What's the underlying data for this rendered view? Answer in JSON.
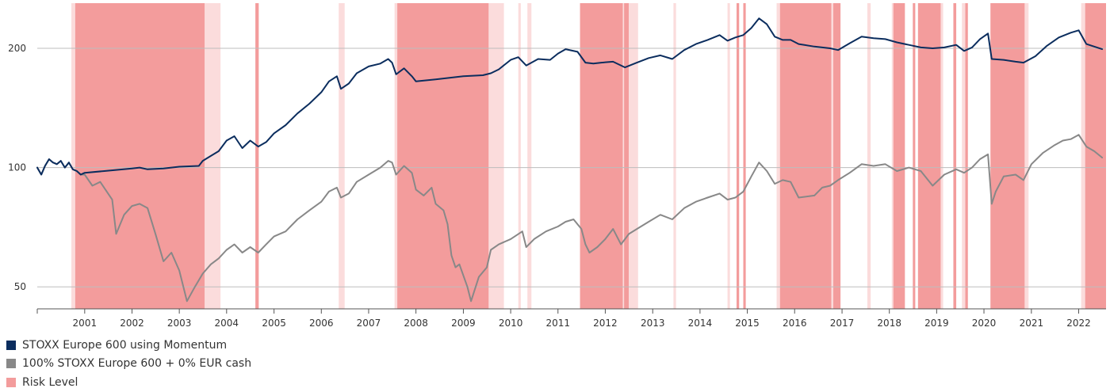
{
  "chart_data": {
    "type": "line",
    "title": "",
    "xlabel": "",
    "ylabel": "",
    "y_scale": "log",
    "ylim": [
      44,
      260
    ],
    "xlim": [
      "2000-01-01",
      "2022-07-31"
    ],
    "y_ticks": [
      50,
      100,
      200
    ],
    "x_ticks": [
      "2001",
      "2002",
      "2003",
      "2004",
      "2005",
      "2006",
      "2007",
      "2008",
      "2009",
      "2010",
      "2011",
      "2012",
      "2013",
      "2014",
      "2015",
      "2016",
      "2017",
      "2018",
      "2019",
      "2020",
      "2021",
      "2022"
    ],
    "grid": true,
    "legend_position": "bottom-left",
    "series": [
      {
        "name": "STOXX Europe 600 using Momentum",
        "color": "#0b2d5e",
        "points": [
          [
            "2000-01-01",
            100
          ],
          [
            "2000-02-01",
            96
          ],
          [
            "2000-03-01",
            101
          ],
          [
            "2000-04-01",
            105
          ],
          [
            "2000-05-01",
            103
          ],
          [
            "2000-06-01",
            102
          ],
          [
            "2000-07-01",
            104
          ],
          [
            "2000-08-01",
            100
          ],
          [
            "2000-09-01",
            103
          ],
          [
            "2000-10-01",
            99
          ],
          [
            "2000-11-01",
            98
          ],
          [
            "2000-12-01",
            96
          ],
          [
            "2001-01-01",
            97
          ],
          [
            "2001-06-01",
            98
          ],
          [
            "2002-01-01",
            99.5
          ],
          [
            "2002-03-01",
            100
          ],
          [
            "2002-05-01",
            99
          ],
          [
            "2002-09-01",
            99.5
          ],
          [
            "2003-01-01",
            100.5
          ],
          [
            "2003-06-01",
            101
          ],
          [
            "2003-07-01",
            104
          ],
          [
            "2003-09-01",
            107
          ],
          [
            "2003-11-01",
            110
          ],
          [
            "2004-01-01",
            117
          ],
          [
            "2004-03-01",
            120
          ],
          [
            "2004-05-01",
            112
          ],
          [
            "2004-07-01",
            117
          ],
          [
            "2004-09-01",
            113
          ],
          [
            "2004-11-01",
            116
          ],
          [
            "2005-01-01",
            122
          ],
          [
            "2005-04-01",
            128
          ],
          [
            "2005-07-01",
            137
          ],
          [
            "2005-10-01",
            145
          ],
          [
            "2006-01-01",
            155
          ],
          [
            "2006-03-01",
            165
          ],
          [
            "2006-05-01",
            170
          ],
          [
            "2006-06-01",
            158
          ],
          [
            "2006-08-01",
            163
          ],
          [
            "2006-10-01",
            173
          ],
          [
            "2007-01-01",
            180
          ],
          [
            "2007-04-01",
            183
          ],
          [
            "2007-06-01",
            188
          ],
          [
            "2007-07-01",
            184
          ],
          [
            "2007-08-01",
            172
          ],
          [
            "2007-10-01",
            178
          ],
          [
            "2007-12-01",
            170
          ],
          [
            "2008-01-01",
            165
          ],
          [
            "2008-06-01",
            167
          ],
          [
            "2009-01-01",
            170
          ],
          [
            "2009-06-01",
            171
          ],
          [
            "2009-08-01",
            173
          ],
          [
            "2009-10-01",
            177
          ],
          [
            "2010-01-01",
            187
          ],
          [
            "2010-03-01",
            190
          ],
          [
            "2010-05-01",
            181
          ],
          [
            "2010-08-01",
            188
          ],
          [
            "2010-11-01",
            187
          ],
          [
            "2011-01-01",
            194
          ],
          [
            "2011-03-01",
            199
          ],
          [
            "2011-06-01",
            196
          ],
          [
            "2011-08-01",
            184
          ],
          [
            "2011-10-01",
            183
          ],
          [
            "2011-12-01",
            184
          ],
          [
            "2012-03-01",
            185
          ],
          [
            "2012-06-01",
            179
          ],
          [
            "2012-09-01",
            184
          ],
          [
            "2012-12-01",
            189
          ],
          [
            "2013-03-01",
            192
          ],
          [
            "2013-06-01",
            188
          ],
          [
            "2013-09-01",
            198
          ],
          [
            "2013-12-01",
            205
          ],
          [
            "2014-03-01",
            210
          ],
          [
            "2014-06-01",
            216
          ],
          [
            "2014-08-01",
            209
          ],
          [
            "2014-10-01",
            213
          ],
          [
            "2014-12-01",
            216
          ],
          [
            "2015-02-01",
            225
          ],
          [
            "2015-04-01",
            238
          ],
          [
            "2015-06-01",
            230
          ],
          [
            "2015-08-01",
            214
          ],
          [
            "2015-10-01",
            210
          ],
          [
            "2015-12-01",
            210
          ],
          [
            "2016-02-01",
            205
          ],
          [
            "2016-06-01",
            202
          ],
          [
            "2016-10-01",
            200
          ],
          [
            "2016-12-01",
            198
          ],
          [
            "2017-03-01",
            206
          ],
          [
            "2017-06-01",
            214
          ],
          [
            "2017-09-01",
            212
          ],
          [
            "2017-12-01",
            211
          ],
          [
            "2018-03-01",
            207
          ],
          [
            "2018-06-01",
            204
          ],
          [
            "2018-09-01",
            201
          ],
          [
            "2018-12-01",
            200
          ],
          [
            "2019-03-01",
            201
          ],
          [
            "2019-06-01",
            204
          ],
          [
            "2019-08-01",
            197
          ],
          [
            "2019-10-01",
            201
          ],
          [
            "2019-12-01",
            211
          ],
          [
            "2020-02-01",
            218
          ],
          [
            "2020-03-01",
            188
          ],
          [
            "2020-06-01",
            187
          ],
          [
            "2020-09-01",
            185
          ],
          [
            "2020-11-01",
            184
          ],
          [
            "2021-02-01",
            191
          ],
          [
            "2021-05-01",
            203
          ],
          [
            "2021-08-01",
            213
          ],
          [
            "2021-11-01",
            219
          ],
          [
            "2022-01-01",
            222
          ],
          [
            "2022-03-01",
            205
          ],
          [
            "2022-05-01",
            202
          ],
          [
            "2022-07-01",
            199
          ]
        ]
      },
      {
        "name": "100% STOXX Europe 600 + 0% EUR cash",
        "color": "#888888",
        "points": [
          [
            "2000-01-01",
            100
          ],
          [
            "2000-02-01",
            96
          ],
          [
            "2000-03-01",
            101
          ],
          [
            "2000-04-01",
            105
          ],
          [
            "2000-05-01",
            103
          ],
          [
            "2000-06-01",
            102
          ],
          [
            "2000-07-01",
            104
          ],
          [
            "2000-08-01",
            100
          ],
          [
            "2000-09-01",
            103
          ],
          [
            "2000-10-01",
            99
          ],
          [
            "2000-11-01",
            98
          ],
          [
            "2000-12-01",
            96
          ],
          [
            "2001-01-01",
            96
          ],
          [
            "2001-03-01",
            90
          ],
          [
            "2001-05-01",
            92
          ],
          [
            "2001-08-01",
            83
          ],
          [
            "2001-09-01",
            68
          ],
          [
            "2001-11-01",
            76
          ],
          [
            "2002-01-01",
            80
          ],
          [
            "2002-03-01",
            81
          ],
          [
            "2002-05-01",
            79
          ],
          [
            "2002-07-01",
            68
          ],
          [
            "2002-09-01",
            58
          ],
          [
            "2002-11-01",
            61
          ],
          [
            "2003-01-01",
            55
          ],
          [
            "2003-03-01",
            46
          ],
          [
            "2003-05-01",
            50
          ],
          [
            "2003-07-01",
            54
          ],
          [
            "2003-09-01",
            57
          ],
          [
            "2003-11-01",
            59
          ],
          [
            "2004-01-01",
            62
          ],
          [
            "2004-03-01",
            64
          ],
          [
            "2004-05-01",
            61
          ],
          [
            "2004-07-01",
            63
          ],
          [
            "2004-09-01",
            61
          ],
          [
            "2004-11-01",
            64
          ],
          [
            "2005-01-01",
            67
          ],
          [
            "2005-04-01",
            69
          ],
          [
            "2005-07-01",
            74
          ],
          [
            "2005-10-01",
            78
          ],
          [
            "2006-01-01",
            82
          ],
          [
            "2006-03-01",
            87
          ],
          [
            "2006-05-01",
            89
          ],
          [
            "2006-06-01",
            84
          ],
          [
            "2006-08-01",
            86
          ],
          [
            "2006-10-01",
            92
          ],
          [
            "2007-01-01",
            96
          ],
          [
            "2007-04-01",
            100
          ],
          [
            "2007-06-01",
            104
          ],
          [
            "2007-07-01",
            103
          ],
          [
            "2007-08-01",
            96
          ],
          [
            "2007-10-01",
            101
          ],
          [
            "2007-12-01",
            97
          ],
          [
            "2008-01-01",
            88
          ],
          [
            "2008-03-01",
            85
          ],
          [
            "2008-05-01",
            89
          ],
          [
            "2008-06-01",
            81
          ],
          [
            "2008-08-01",
            78
          ],
          [
            "2008-09-01",
            72
          ],
          [
            "2008-10-01",
            60
          ],
          [
            "2008-11-01",
            56
          ],
          [
            "2008-12-01",
            57
          ],
          [
            "2009-02-01",
            50
          ],
          [
            "2009-03-01",
            46
          ],
          [
            "2009-05-01",
            53
          ],
          [
            "2009-07-01",
            56
          ],
          [
            "2009-08-01",
            62
          ],
          [
            "2009-10-01",
            64
          ],
          [
            "2010-01-01",
            66
          ],
          [
            "2010-04-01",
            69
          ],
          [
            "2010-05-01",
            63
          ],
          [
            "2010-07-01",
            66
          ],
          [
            "2010-10-01",
            69
          ],
          [
            "2011-01-01",
            71
          ],
          [
            "2011-03-01",
            73
          ],
          [
            "2011-05-01",
            74
          ],
          [
            "2011-07-01",
            70
          ],
          [
            "2011-08-01",
            64
          ],
          [
            "2011-09-01",
            61
          ],
          [
            "2011-11-01",
            63
          ],
          [
            "2012-01-01",
            66
          ],
          [
            "2012-03-01",
            70
          ],
          [
            "2012-05-01",
            64
          ],
          [
            "2012-07-01",
            68
          ],
          [
            "2012-09-01",
            70
          ],
          [
            "2012-12-01",
            73
          ],
          [
            "2013-03-01",
            76
          ],
          [
            "2013-06-01",
            74
          ],
          [
            "2013-09-01",
            79
          ],
          [
            "2013-12-01",
            82
          ],
          [
            "2014-03-01",
            84
          ],
          [
            "2014-06-01",
            86
          ],
          [
            "2014-08-01",
            83
          ],
          [
            "2014-10-01",
            84
          ],
          [
            "2014-12-01",
            87
          ],
          [
            "2015-02-01",
            95
          ],
          [
            "2015-04-01",
            103
          ],
          [
            "2015-06-01",
            98
          ],
          [
            "2015-08-01",
            91
          ],
          [
            "2015-10-01",
            93
          ],
          [
            "2015-12-01",
            92
          ],
          [
            "2016-02-01",
            84
          ],
          [
            "2016-06-01",
            85
          ],
          [
            "2016-08-01",
            89
          ],
          [
            "2016-10-01",
            90
          ],
          [
            "2016-12-01",
            93
          ],
          [
            "2017-03-01",
            97
          ],
          [
            "2017-06-01",
            102
          ],
          [
            "2017-09-01",
            101
          ],
          [
            "2017-12-01",
            102
          ],
          [
            "2018-03-01",
            98
          ],
          [
            "2018-06-01",
            100
          ],
          [
            "2018-09-01",
            98
          ],
          [
            "2018-12-01",
            90
          ],
          [
            "2019-03-01",
            96
          ],
          [
            "2019-06-01",
            99
          ],
          [
            "2019-08-01",
            97
          ],
          [
            "2019-10-01",
            100
          ],
          [
            "2019-12-01",
            105
          ],
          [
            "2020-02-01",
            108
          ],
          [
            "2020-03-01",
            81
          ],
          [
            "2020-04-01",
            87
          ],
          [
            "2020-06-01",
            95
          ],
          [
            "2020-09-01",
            96
          ],
          [
            "2020-11-01",
            93
          ],
          [
            "2021-01-01",
            102
          ],
          [
            "2021-04-01",
            109
          ],
          [
            "2021-07-01",
            114
          ],
          [
            "2021-09-01",
            117
          ],
          [
            "2021-11-01",
            118
          ],
          [
            "2022-01-01",
            121
          ],
          [
            "2022-03-01",
            113
          ],
          [
            "2022-05-01",
            110
          ],
          [
            "2022-07-01",
            106
          ]
        ]
      }
    ],
    "risk_level": {
      "name": "Risk Level",
      "color": "#f08080",
      "high": [
        [
          "2000-10-20",
          "2003-07-15"
        ],
        [
          "2004-08-10",
          "2004-09-05"
        ],
        [
          "2007-08-10",
          "2009-07-15"
        ],
        [
          "2011-06-20",
          "2012-05-15"
        ],
        [
          "2012-05-25",
          "2012-06-30"
        ],
        [
          "2014-10-10",
          "2014-10-30"
        ],
        [
          "2014-12-01",
          "2014-12-20"
        ],
        [
          "2015-09-10",
          "2016-10-10"
        ],
        [
          "2016-10-25",
          "2016-12-20"
        ],
        [
          "2018-02-01",
          "2018-05-01"
        ],
        [
          "2018-07-01",
          "2018-07-20"
        ],
        [
          "2018-08-10",
          "2019-02-01"
        ],
        [
          "2019-05-10",
          "2019-06-01"
        ],
        [
          "2019-08-10",
          "2019-08-30"
        ],
        [
          "2020-02-20",
          "2020-11-10"
        ],
        [
          "2022-02-20",
          "2022-07-31"
        ]
      ],
      "medium": [
        [
          "2000-09-20",
          "2000-10-20"
        ],
        [
          "2003-07-15",
          "2003-11-15"
        ],
        [
          "2006-05-15",
          "2006-06-30"
        ],
        [
          "2007-07-20",
          "2007-08-10"
        ],
        [
          "2009-07-15",
          "2009-11-10"
        ],
        [
          "2010-03-01",
          "2010-03-20"
        ],
        [
          "2010-05-10",
          "2010-06-10"
        ],
        [
          "2012-05-15",
          "2012-05-25"
        ],
        [
          "2012-06-30",
          "2012-09-10"
        ],
        [
          "2013-06-10",
          "2013-06-30"
        ],
        [
          "2014-08-01",
          "2014-08-20"
        ],
        [
          "2015-08-15",
          "2015-09-10"
        ],
        [
          "2016-10-10",
          "2016-10-25"
        ],
        [
          "2017-07-15",
          "2017-08-10"
        ],
        [
          "2018-01-20",
          "2018-02-01"
        ],
        [
          "2019-02-01",
          "2019-02-20"
        ],
        [
          "2019-07-15",
          "2019-08-10"
        ],
        [
          "2020-11-10",
          "2020-12-10"
        ],
        [
          "2022-01-20",
          "2022-02-20"
        ]
      ]
    }
  }
}
